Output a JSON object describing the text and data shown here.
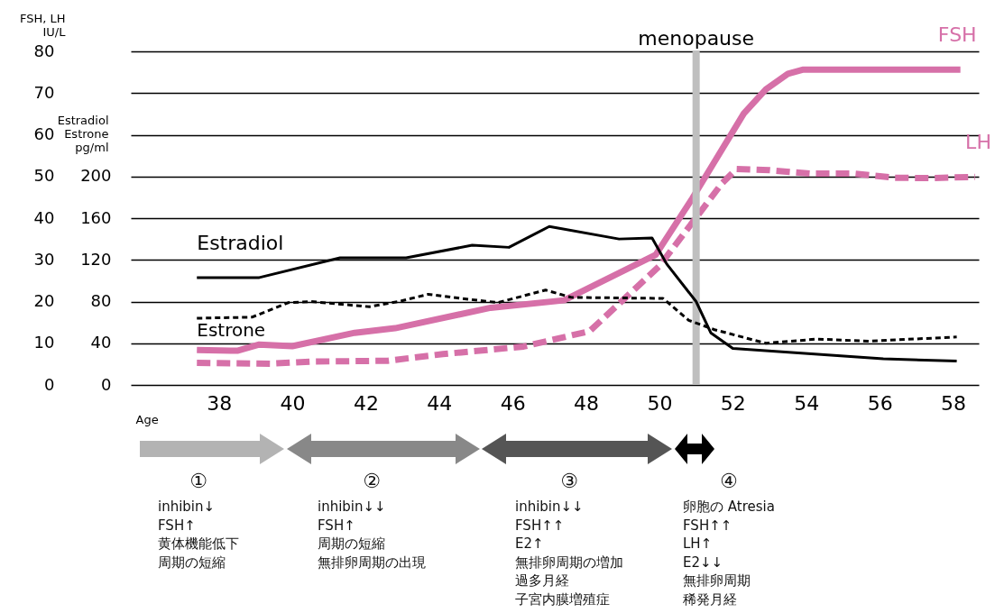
{
  "chart_data": {
    "type": "line",
    "xlabel": "Age",
    "ylabel": "FSH, LH\nIU/L",
    "y2label": "Estradiol\nEstrone\npg/ml",
    "xlim": [
      35.6,
      58.7
    ],
    "xticks": [
      38,
      40,
      42,
      44,
      46,
      48,
      50,
      52,
      54,
      56,
      58
    ],
    "ylim": [
      0,
      80
    ],
    "yticks": [
      0,
      10,
      20,
      30,
      40,
      50,
      60,
      70,
      80
    ],
    "y2lim": [
      0,
      320
    ],
    "y2ticks": [
      0,
      40,
      80,
      120,
      160,
      200
    ],
    "grid": "y",
    "ref_lines": [
      {
        "axis": "x",
        "value": 51,
        "label": "menopause",
        "color": "#bfbfbf"
      }
    ],
    "series": [
      {
        "name": "FSH",
        "color": "#d670a8",
        "line_style": "solid",
        "x": [
          37.4,
          38.5,
          39.1,
          40.0,
          41.7,
          42.8,
          45.4,
          47.4,
          49.9,
          50.9,
          52.3,
          52.9,
          53.5,
          53.9,
          58.2
        ],
        "values": [
          8.4,
          8.2,
          9.7,
          9.3,
          12.5,
          13.6,
          18.5,
          20.3,
          31.2,
          44.8,
          65.1,
          70.9,
          74.6,
          75.6,
          75.6
        ]
      },
      {
        "name": "LH",
        "color": "#d670a8",
        "line_style": "dashed",
        "x": [
          37.4,
          39.4,
          40.5,
          42.6,
          44.1,
          44.6,
          46.3,
          48.1,
          50.0,
          51.7,
          52.1,
          53.0,
          54.1,
          55.3,
          56.4,
          57.4,
          58.6
        ],
        "values": [
          5.3,
          5.1,
          5.6,
          5.8,
          7.4,
          7.8,
          9.2,
          12.9,
          28.5,
          48.3,
          51.8,
          51.5,
          50.7,
          50.7,
          49.7,
          49.6,
          49.9
        ]
      },
      {
        "name": "Estradiol",
        "color": "#000000",
        "line_style": "solid",
        "axis": "y2",
        "x": [
          37.4,
          39.1,
          41.3,
          43.1,
          44.9,
          45.9,
          47.0,
          48.9,
          49.8,
          50.2,
          51.0,
          51.4,
          52.0,
          56.1,
          58.1
        ],
        "values": [
          103,
          103,
          122,
          122,
          134,
          132,
          152,
          140,
          141,
          116,
          80,
          50,
          35,
          25,
          23
        ]
      },
      {
        "name": "Estrone",
        "color": "#000000",
        "line_style": "dashed",
        "axis": "y2",
        "x": [
          37.4,
          38.9,
          39.9,
          40.5,
          42.1,
          42.9,
          43.7,
          44.6,
          45.6,
          46.9,
          47.6,
          50.1,
          50.8,
          51.5,
          52.9,
          54.3,
          55.7,
          58.1
        ],
        "values": [
          64,
          65,
          79,
          80,
          75,
          80,
          87,
          83,
          79,
          91,
          84,
          83,
          62,
          53,
          40,
          44,
          42,
          46
        ]
      }
    ],
    "annotations": [
      "①",
      "inhibin↓",
      "FSH↑",
      "黄体機能低下",
      "周期の短縮",
      "②",
      "inhibin↓↓",
      "FSH↑",
      "周期の短縮",
      "無排卵周期の出現",
      "③",
      "inhibin↓↓",
      "FSH↑↑",
      "E2↑",
      "無排卵周期の増加",
      "過多月経",
      "子宮内膜増殖症",
      "④",
      "卵胞の Atresia",
      "FSH↑↑",
      "LH↑",
      "E2↓↓",
      "無排卵周期",
      "稀発月経"
    ]
  }
}
